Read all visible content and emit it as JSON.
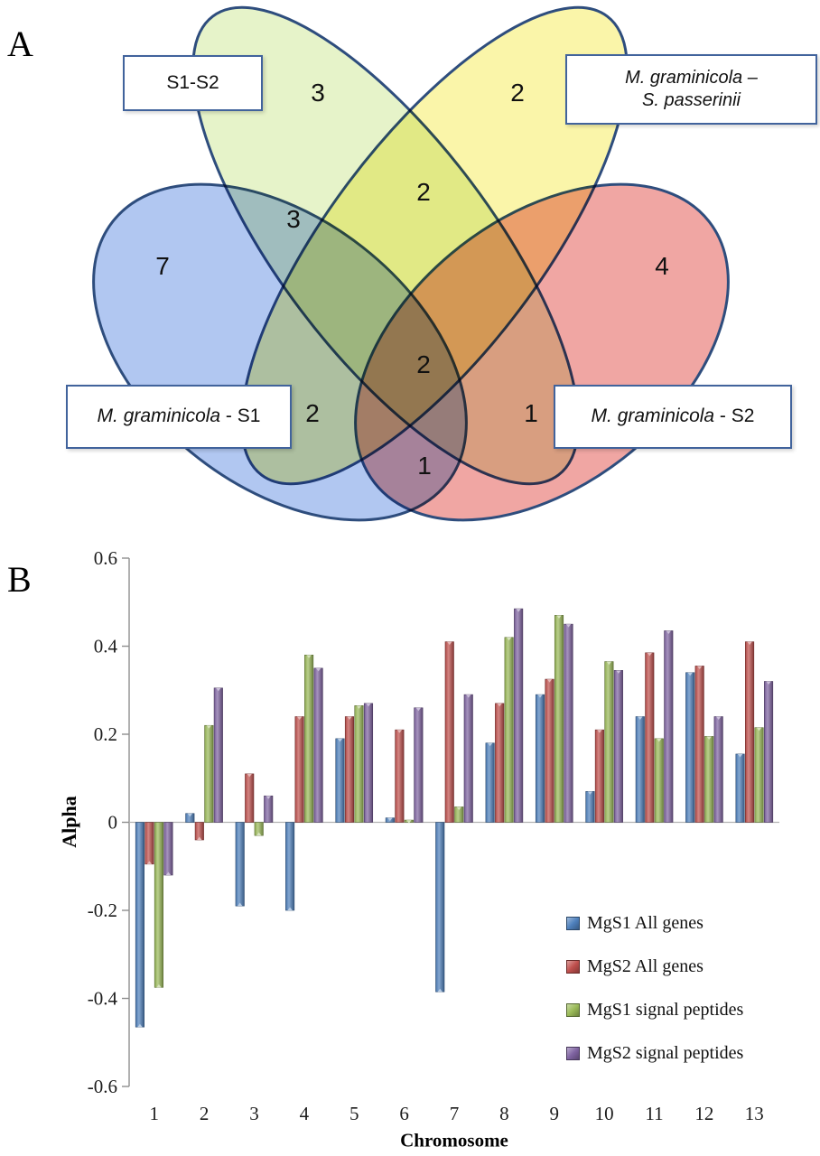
{
  "figure": {
    "panels": [
      {
        "label": "A"
      },
      {
        "label": "B"
      }
    ]
  },
  "venn": {
    "outline_color": "#2e4d7d",
    "sets": [
      {
        "name": "M. graminicola - S1",
        "fill": "#a9c1ef"
      },
      {
        "name": "S1-S2",
        "fill": "#e3f2c3"
      },
      {
        "name": "M. graminicola – S. passerinii",
        "fill": "#f9f4a0"
      },
      {
        "name": "M. graminicola - S2",
        "fill": "#ee9c99"
      }
    ],
    "labels": {
      "top_left": "S1-S2",
      "top_right_line1": "M. graminicola –",
      "top_right_line2": "S. passerinii",
      "bottom_left_italic": "M. graminicola",
      "bottom_left_suffix": " - S1",
      "bottom_right_italic": "M. graminicola",
      "bottom_right_suffix": " - S2"
    },
    "regions": [
      {
        "region": "S1-S2 only",
        "value": 3
      },
      {
        "region": "M. graminicola–S. passerinii only",
        "value": 2
      },
      {
        "region": "S1-S2 ∩ M. graminicola–S. passerinii",
        "value": 2
      },
      {
        "region": "M. graminicola-S1 ∩ S1-S2",
        "value": 3
      },
      {
        "region": "M. graminicola-S1 only",
        "value": 7
      },
      {
        "region": "M. graminicola-S2 only",
        "value": 4
      },
      {
        "region": "center intersection",
        "value": 2
      },
      {
        "region": "M. graminicola-S1 ∩ M. graminicola–S. passerinii",
        "value": 2
      },
      {
        "region": "S1-S2 ∩ M. graminicola-S2",
        "value": 1
      },
      {
        "region": "M. graminicola-S1 ∩ M. graminicola-S2",
        "value": 1
      }
    ]
  },
  "chart_data": {
    "type": "bar",
    "title": "",
    "xlabel": "Chromosome",
    "ylabel": "Alpha",
    "ylim": [
      -0.6,
      0.6
    ],
    "ytick_step": 0.2,
    "grid": false,
    "legend_position": "right-middle",
    "categories": [
      "1",
      "2",
      "3",
      "4",
      "5",
      "6",
      "7",
      "8",
      "9",
      "10",
      "11",
      "12",
      "13"
    ],
    "series": [
      {
        "name": "MgS1 All genes",
        "color": "#4f81bd",
        "values": [
          -0.465,
          0.02,
          -0.19,
          -0.2,
          0.19,
          0.01,
          -0.385,
          0.18,
          0.29,
          0.07,
          0.24,
          0.34,
          0.155
        ]
      },
      {
        "name": "MgS2 All genes",
        "color": "#c0504d",
        "values": [
          -0.095,
          -0.04,
          0.11,
          0.24,
          0.24,
          0.21,
          0.41,
          0.27,
          0.325,
          0.21,
          0.385,
          0.355,
          0.41
        ]
      },
      {
        "name": "MgS1 signal peptides",
        "color": "#9bbb59",
        "values": [
          -0.375,
          0.22,
          -0.03,
          0.38,
          0.265,
          0.005,
          0.035,
          0.42,
          0.47,
          0.365,
          0.19,
          0.195,
          0.215
        ]
      },
      {
        "name": "MgS2 signal peptides",
        "color": "#8064a2",
        "values": [
          -0.12,
          0.305,
          0.06,
          0.35,
          0.27,
          0.26,
          0.29,
          0.485,
          0.45,
          0.345,
          0.435,
          0.24,
          0.32
        ]
      }
    ]
  }
}
